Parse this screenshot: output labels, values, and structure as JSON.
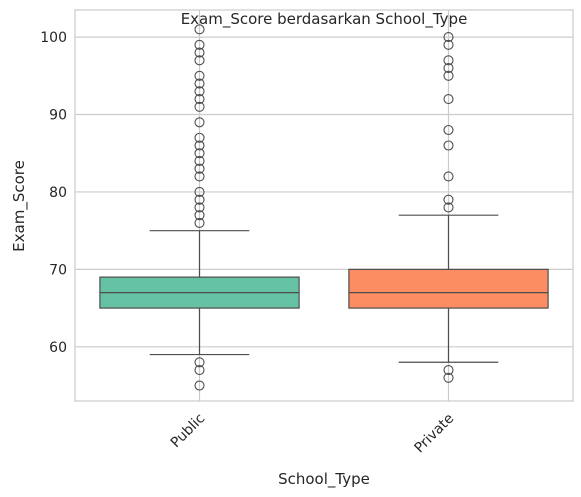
{
  "chart_data": {
    "type": "box",
    "title": "Exam_Score berdasarkan School_Type",
    "xlabel": "School_Type",
    "ylabel": "Exam_Score",
    "ylim": [
      53,
      103.5
    ],
    "yticks": [
      60,
      70,
      80,
      90,
      100
    ],
    "grid": true,
    "categories": [
      "Public",
      "Private"
    ],
    "series": [
      {
        "category": "Public",
        "color": "#66c2a5",
        "whisker_low": 59,
        "q1": 65,
        "median": 67,
        "q3": 69,
        "whisker_high": 75,
        "outliers": [
          55,
          57,
          58,
          76,
          77,
          78,
          79,
          80,
          82,
          83,
          84,
          85,
          86,
          87,
          89,
          91,
          92,
          93,
          94,
          95,
          97,
          98,
          99,
          101
        ]
      },
      {
        "category": "Private",
        "color": "#fc8d62",
        "whisker_low": 58,
        "q1": 65,
        "median": 67,
        "q3": 70,
        "whisker_high": 77,
        "outliers": [
          56,
          57,
          78,
          79,
          82,
          86,
          88,
          92,
          95,
          96,
          97,
          99,
          100
        ]
      }
    ]
  }
}
